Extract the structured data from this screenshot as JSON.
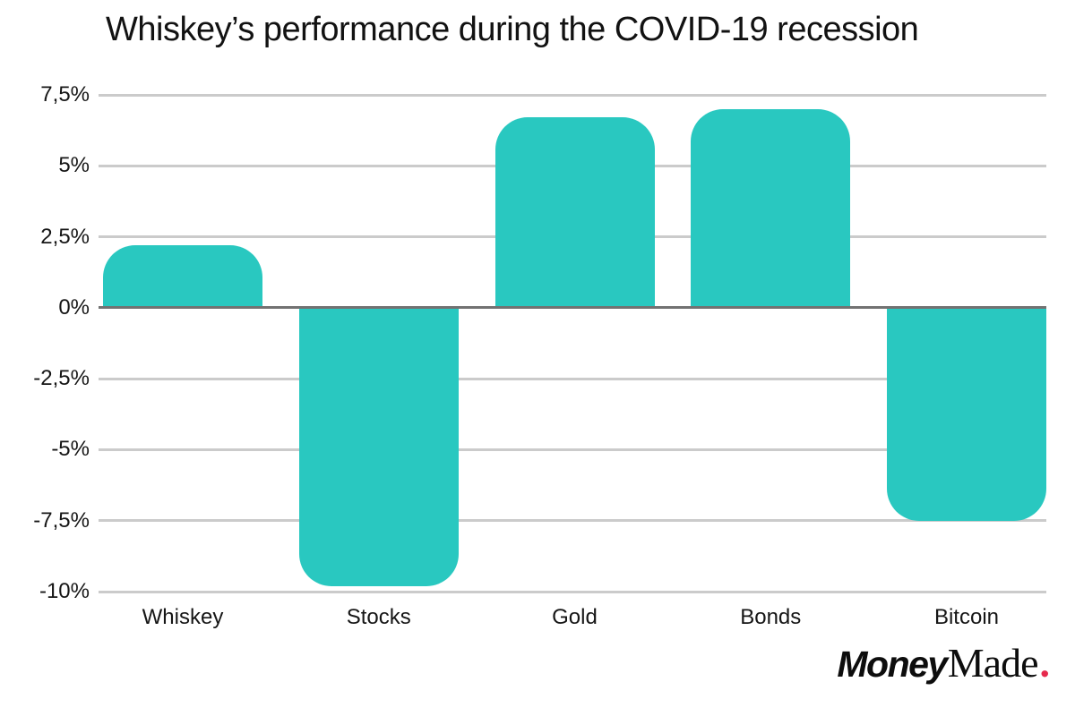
{
  "title": "Whiskey’s performance during the COVID-19 recession",
  "brand": {
    "bold": "Money",
    "serif": "Made",
    "dot": ".",
    "dot_color": "#E62A4D",
    "text_color": "#0D0D0D"
  },
  "chart_data": {
    "type": "bar",
    "title": "Whiskey’s performance during the COVID-19 recession",
    "categories": [
      "Whiskey",
      "Stocks",
      "Gold",
      "Bonds",
      "Bitcoin"
    ],
    "values": [
      2.2,
      -9.8,
      6.7,
      7.0,
      -7.5
    ],
    "value_unit": "%",
    "xlabel": "",
    "ylabel": "",
    "ylim": [
      -10,
      7.5
    ],
    "y_ticks": [
      {
        "value": 7.5,
        "label": "7,5%"
      },
      {
        "value": 5,
        "label": "5%"
      },
      {
        "value": 2.5,
        "label": "2,5%"
      },
      {
        "value": 0,
        "label": "0%"
      },
      {
        "value": -2.5,
        "label": "-2,5%"
      },
      {
        "value": -5,
        "label": "-5%"
      },
      {
        "value": -7.5,
        "label": "-7,5%"
      },
      {
        "value": -10,
        "label": "-10%"
      }
    ],
    "grid": true,
    "legend": false,
    "colors": {
      "bar": "#29C8C0",
      "gridline": "#CBCBCB",
      "zero_line": "#727272",
      "text": "#161616"
    }
  }
}
